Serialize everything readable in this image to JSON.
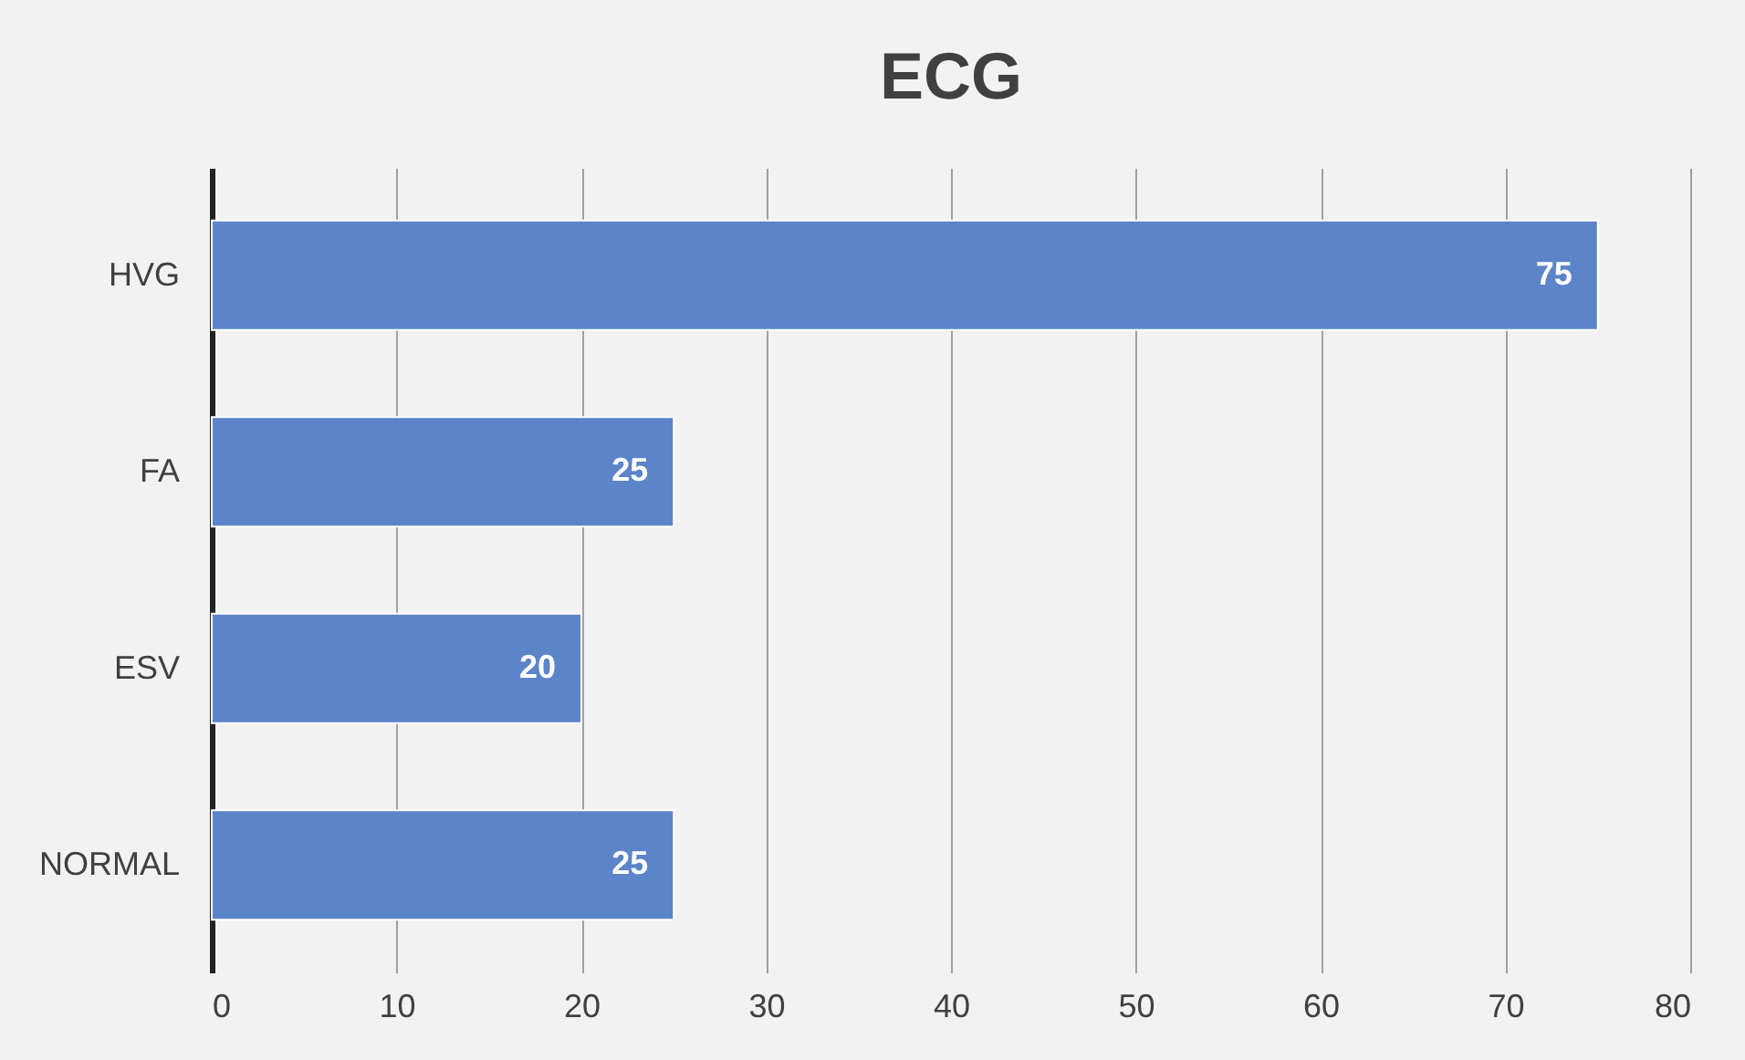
{
  "chart_data": {
    "type": "bar",
    "title": "ECG",
    "orientation": "horizontal",
    "categories": [
      "HVG",
      "FA",
      "ESV",
      "NORMAL"
    ],
    "values": [
      75,
      25,
      20,
      25
    ],
    "color": "#5b84c9",
    "xlim": [
      0,
      80
    ],
    "xticks": [
      0,
      10,
      20,
      30,
      40,
      50,
      60,
      70,
      80
    ],
    "grid": "x",
    "data_labels": true
  }
}
